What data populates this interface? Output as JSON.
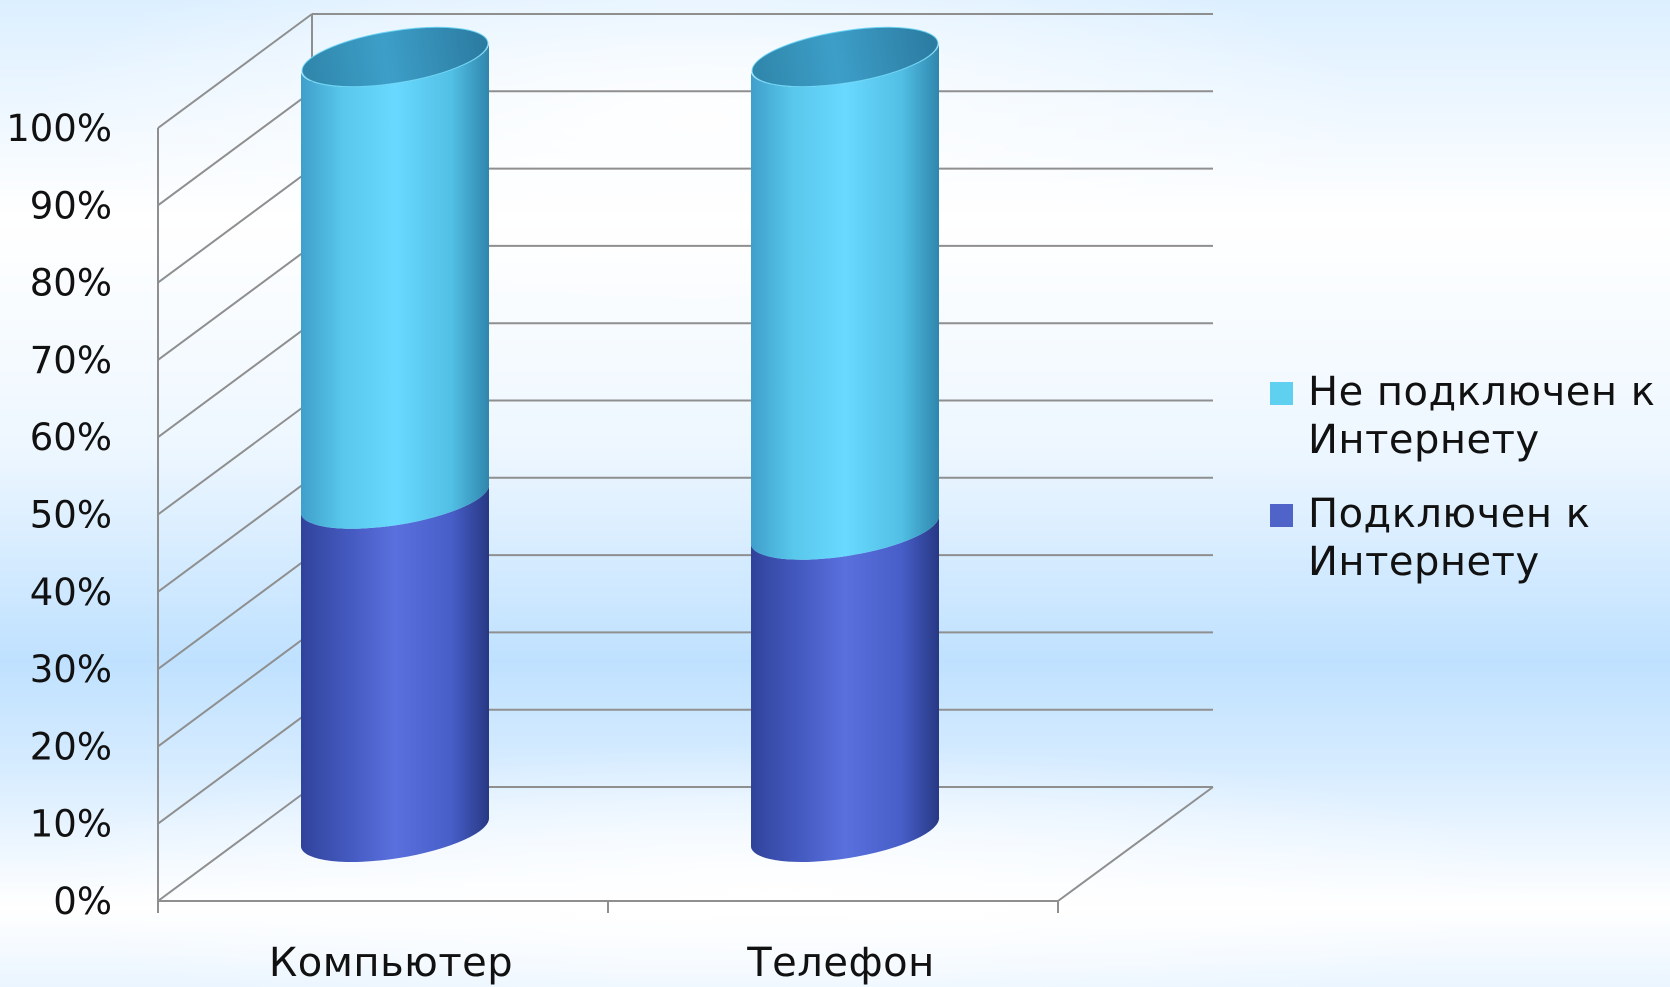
{
  "chart_data": {
    "type": "bar",
    "stacked": true,
    "percent_stacked": true,
    "categories": [
      "Компьютер",
      "Телефон"
    ],
    "series": [
      {
        "name": "Подключен к Интернету",
        "values": [
          43,
          39
        ],
        "color": "#4f63c9"
      },
      {
        "name": "Не подключен к Интернету",
        "values": [
          57,
          61
        ],
        "color": "#5fd0ef"
      }
    ],
    "y_ticks": [
      "0%",
      "10%",
      "20%",
      "30%",
      "40%",
      "50%",
      "60%",
      "70%",
      "80%",
      "90%",
      "100%"
    ],
    "ylim": [
      0,
      100
    ],
    "grid": true,
    "legend_position": "right",
    "title": "",
    "xlabel": "",
    "ylabel": ""
  },
  "legend": [
    {
      "label": "Не подключен к Интернету",
      "color": "#5fd0ef"
    },
    {
      "label": "Подключен к Интернету",
      "color": "#4f63c9"
    }
  ]
}
